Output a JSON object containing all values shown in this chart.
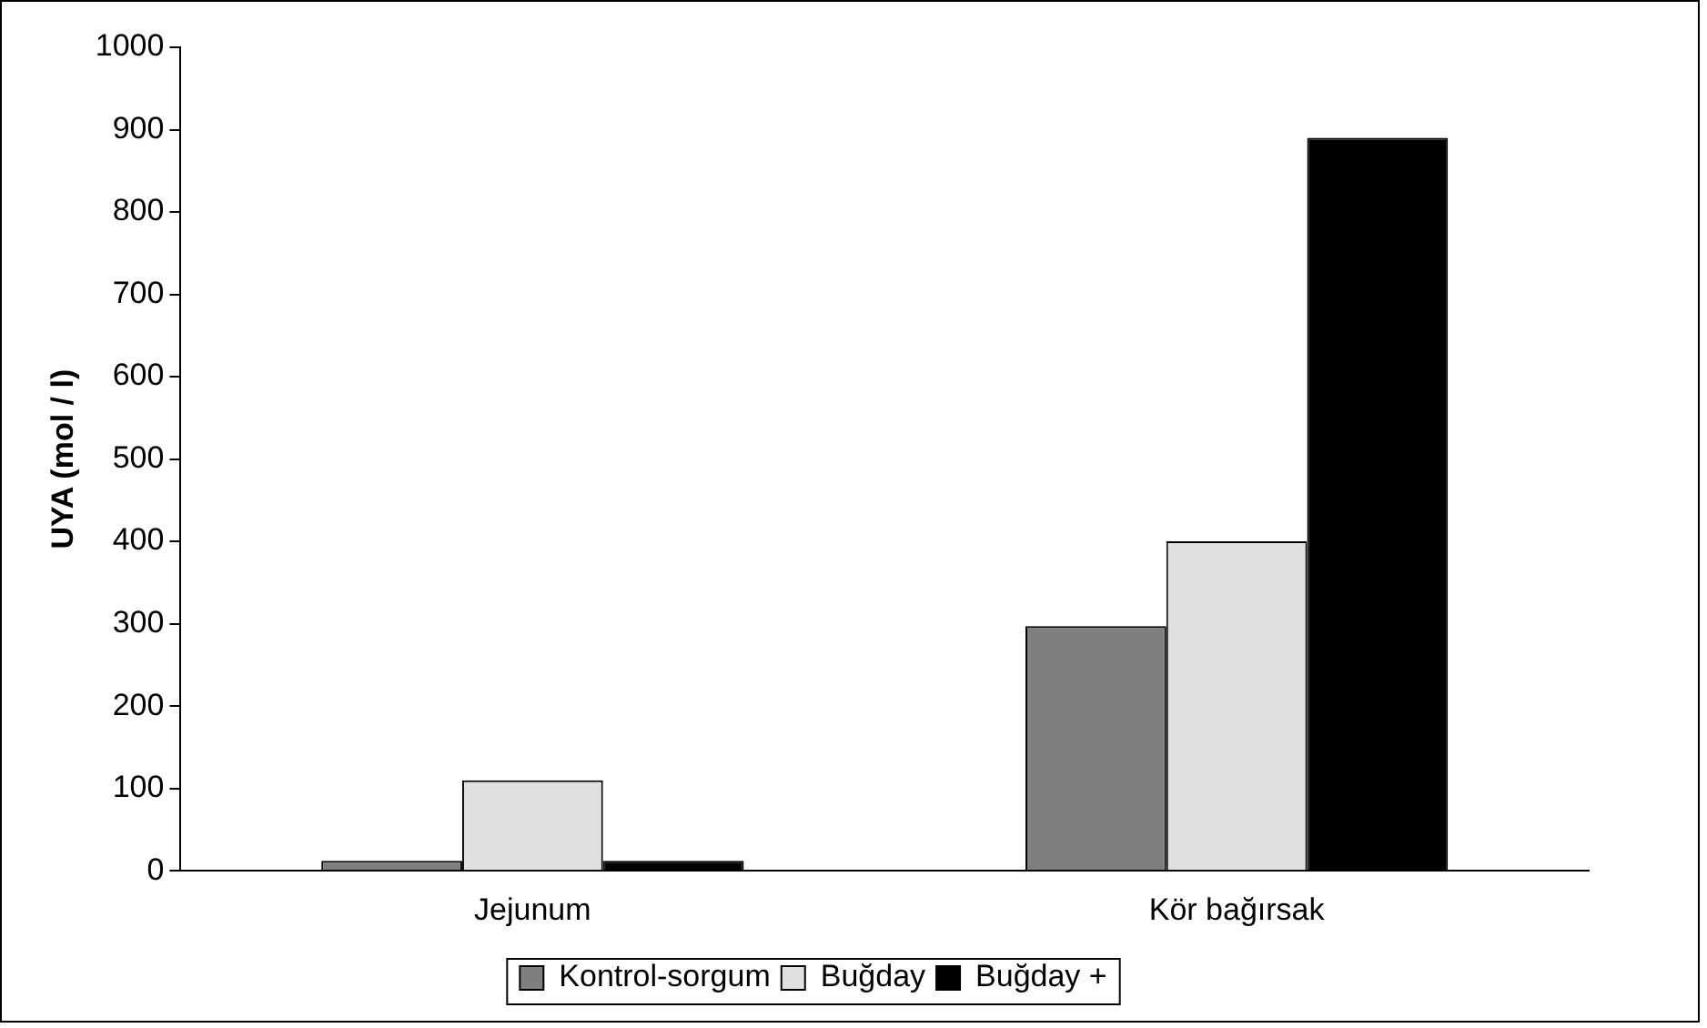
{
  "chart_data": {
    "type": "bar",
    "ylabel": "UYA (mol / l)",
    "categories": [
      "Jejunum",
      "Kör bağırsak"
    ],
    "series": [
      {
        "name": "Kontrol-sorgum",
        "color": "#7f7f7f",
        "values": [
          12,
          297
        ]
      },
      {
        "name": "Buğday",
        "color": "#e0e0e0",
        "values": [
          110,
          400
        ]
      },
      {
        "name": "Buğday +",
        "color": "#000000",
        "values": [
          12,
          890
        ]
      }
    ],
    "ylim": [
      0,
      1000
    ],
    "yticks": [
      0,
      100,
      200,
      300,
      400,
      500,
      600,
      700,
      800,
      900,
      1000
    ],
    "grid": false,
    "legend": "bottom"
  }
}
